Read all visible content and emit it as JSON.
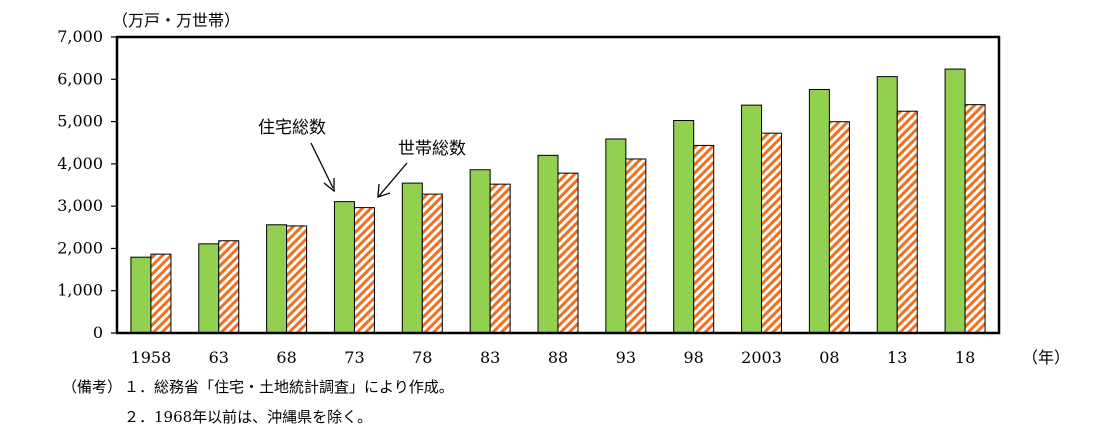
{
  "chart_data": {
    "type": "bar",
    "unit_label": "（万戸・万世帯）",
    "x_unit_label": "（年）",
    "categories": [
      "1958",
      "63",
      "68",
      "73",
      "78",
      "83",
      "88",
      "93",
      "98",
      "2003",
      "08",
      "13",
      "18"
    ],
    "series": [
      {
        "name": "住宅総数",
        "values": [
          1793,
          2109,
          2559,
          3106,
          3545,
          3861,
          4201,
          4588,
          5025,
          5389,
          5759,
          6063,
          6241
        ],
        "color": "#92d050"
      },
      {
        "name": "世帯総数",
        "values": [
          1865,
          2182,
          2532,
          2965,
          3284,
          3520,
          3781,
          4116,
          4436,
          4726,
          4997,
          5245,
          5400
        ],
        "color": "#f07020",
        "pattern": "diagonal-hatch"
      }
    ],
    "ylim": [
      0,
      7000
    ],
    "yticks": [
      0,
      1000,
      2000,
      3000,
      4000,
      5000,
      6000,
      7000
    ],
    "ytick_labels": [
      "0",
      "1,000",
      "2,000",
      "3,000",
      "4,000",
      "5,000",
      "6,000",
      "7,000"
    ],
    "grid": false,
    "legend": "annotations with arrows"
  },
  "notes": {
    "label": "（備考）",
    "items": [
      "１．総務省「住宅・土地統計調査」により作成。",
      "２．1968年以前は、沖縄県を除く。"
    ]
  }
}
